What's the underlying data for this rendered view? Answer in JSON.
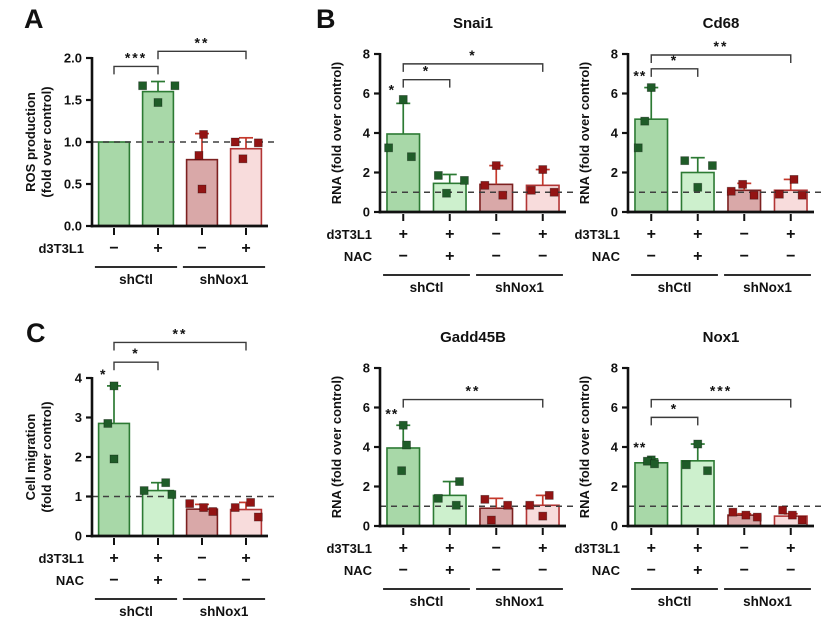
{
  "panels": {
    "a": "A",
    "b": "B",
    "c": "C"
  },
  "palette": {
    "green": {
      "fill": "#a8d8a8",
      "stroke": "#2c7a33",
      "err": "#2c7a33",
      "point": "#1f5c28"
    },
    "greenLight": {
      "fill": "#cdf0cd",
      "stroke": "#2c7a33",
      "err": "#2c7a33",
      "point": "#1f5c28"
    },
    "rose": {
      "fill": "#d9a8a8",
      "stroke": "#7c2020",
      "err": "#c4392c",
      "point": "#931414"
    },
    "pink": {
      "fill": "#f8dcdc",
      "stroke": "#b23535",
      "err": "#c4392c",
      "point": "#931414"
    }
  },
  "chart_data": [
    {
      "id": "A",
      "type": "bar",
      "title": "",
      "ylabel_lines": [
        "ROS production",
        "(fold over control)"
      ],
      "ylim": [
        0,
        2.0
      ],
      "yticks": [
        0,
        0.5,
        1.0,
        1.5,
        2.0
      ],
      "ytick_labels": [
        "0.0",
        "0.5",
        "1.0",
        "1.5",
        "2.0"
      ],
      "dashed_line_y": 1.0,
      "x_rows": [
        {
          "label": "d3T3L1",
          "values": [
            "−",
            "+",
            "−",
            "+"
          ]
        }
      ],
      "groups": [
        {
          "label": "shCtl",
          "from": 0,
          "to": 1
        },
        {
          "label": "shNox1",
          "from": 2,
          "to": 3
        }
      ],
      "bars": [
        {
          "value": 1.0,
          "style": "green",
          "error_top": null,
          "points": [],
          "star": null,
          "star_y": null
        },
        {
          "value": 1.6,
          "style": "green",
          "error_top": 1.72,
          "points": [
            [
              1.67,
              -0.5
            ],
            [
              1.67,
              0.55
            ],
            [
              1.47,
              0
            ]
          ],
          "star": null,
          "star_y": null
        },
        {
          "value": 0.79,
          "style": "rose",
          "error_top": 1.1,
          "points": [
            [
              1.09,
              0.05
            ],
            [
              0.84,
              -0.1
            ],
            [
              0.44,
              0
            ]
          ],
          "star": null,
          "star_y": null
        },
        {
          "value": 0.92,
          "style": "pink",
          "error_top": 1.05,
          "points": [
            [
              1.0,
              -0.35
            ],
            [
              0.99,
              0.4
            ],
            [
              0.8,
              -0.1
            ]
          ],
          "star": null,
          "star_y": null
        }
      ],
      "brackets": [
        {
          "from": 0,
          "to": 1,
          "y": 1.9,
          "label": "***"
        },
        {
          "from": 1,
          "to": 3,
          "y": 2.08,
          "label": "**"
        }
      ]
    },
    {
      "id": "Snai1",
      "type": "bar",
      "title": "Snai1",
      "ylabel_lines": [
        "RNA (fold over control)"
      ],
      "ylim": [
        0,
        8
      ],
      "yticks": [
        0,
        2,
        4,
        6,
        8
      ],
      "ytick_labels": [
        "0",
        "2",
        "4",
        "6",
        "8"
      ],
      "dashed_line_y": 1.0,
      "x_rows": [
        {
          "label": "d3T3L1",
          "values": [
            "+",
            "+",
            "−",
            "+"
          ]
        },
        {
          "label": "NAC",
          "values": [
            "−",
            "+",
            "−",
            "−"
          ]
        }
      ],
      "groups": [
        {
          "label": "shCtl",
          "from": 0,
          "to": 1
        },
        {
          "label": "shNox1",
          "from": 2,
          "to": 3
        }
      ],
      "bars": [
        {
          "value": 3.95,
          "style": "green",
          "error_top": 5.5,
          "points": [
            [
              5.7,
              0
            ],
            [
              3.25,
              -0.45
            ],
            [
              2.8,
              0.25
            ]
          ],
          "star": "*",
          "star_y": 5.95
        },
        {
          "value": 1.45,
          "style": "greenLight",
          "error_top": 1.9,
          "points": [
            [
              1.85,
              -0.35
            ],
            [
              1.6,
              0.45
            ],
            [
              0.95,
              -0.1
            ]
          ],
          "star": null,
          "star_y": null
        },
        {
          "value": 1.4,
          "style": "rose",
          "error_top": 2.35,
          "points": [
            [
              2.35,
              0
            ],
            [
              1.35,
              -0.35
            ],
            [
              0.85,
              0.2
            ]
          ],
          "star": null,
          "star_y": null
        },
        {
          "value": 1.35,
          "style": "pink",
          "error_top": 2.15,
          "points": [
            [
              2.15,
              0
            ],
            [
              1.1,
              -0.35
            ],
            [
              1.0,
              0.35
            ]
          ],
          "star": null,
          "star_y": null
        }
      ],
      "brackets": [
        {
          "from": 0,
          "to": 1,
          "y": 6.7,
          "label": "*"
        },
        {
          "from": 0,
          "to": 3,
          "y": 7.5,
          "label": "*"
        }
      ]
    },
    {
      "id": "Cd68",
      "type": "bar",
      "title": "Cd68",
      "ylabel_lines": [
        "RNA (fold over control)"
      ],
      "ylim": [
        0,
        8
      ],
      "yticks": [
        0,
        2,
        4,
        6,
        8
      ],
      "ytick_labels": [
        "0",
        "2",
        "4",
        "6",
        "8"
      ],
      "dashed_line_y": 1.0,
      "x_rows": [
        {
          "label": "d3T3L1",
          "values": [
            "+",
            "+",
            "−",
            "+"
          ]
        },
        {
          "label": "NAC",
          "values": [
            "−",
            "+",
            "−",
            "−"
          ]
        }
      ],
      "groups": [
        {
          "label": "shCtl",
          "from": 0,
          "to": 1
        },
        {
          "label": "shNox1",
          "from": 2,
          "to": 3
        }
      ],
      "bars": [
        {
          "value": 4.7,
          "style": "green",
          "error_top": 6.3,
          "points": [
            [
              6.3,
              0
            ],
            [
              4.6,
              -0.2
            ],
            [
              3.25,
              -0.4
            ]
          ],
          "star": "**",
          "star_y": 6.65
        },
        {
          "value": 2.0,
          "style": "greenLight",
          "error_top": 2.75,
          "points": [
            [
              2.6,
              -0.4
            ],
            [
              2.35,
              0.45
            ],
            [
              1.25,
              0
            ]
          ],
          "star": null,
          "star_y": null
        },
        {
          "value": 1.1,
          "style": "rose",
          "error_top": 1.45,
          "points": [
            [
              1.4,
              -0.05
            ],
            [
              1.05,
              -0.4
            ],
            [
              0.85,
              0.3
            ]
          ],
          "star": null,
          "star_y": null
        },
        {
          "value": 1.1,
          "style": "pink",
          "error_top": 1.65,
          "points": [
            [
              1.65,
              0.1
            ],
            [
              0.9,
              -0.35
            ],
            [
              0.85,
              0.35
            ]
          ],
          "star": null,
          "star_y": null
        }
      ],
      "brackets": [
        {
          "from": 0,
          "to": 1,
          "y": 7.25,
          "label": "*"
        },
        {
          "from": 0,
          "to": 3,
          "y": 7.95,
          "label": "**"
        }
      ]
    },
    {
      "id": "C",
      "type": "bar",
      "title": "",
      "ylabel_lines": [
        "Cell migration",
        "(fold over control)"
      ],
      "ylim": [
        0,
        4
      ],
      "yticks": [
        0,
        1,
        2,
        3,
        4
      ],
      "ytick_labels": [
        "0",
        "1",
        "2",
        "3",
        "4"
      ],
      "dashed_line_y": 1.0,
      "x_rows": [
        {
          "label": "d3T3L1",
          "values": [
            "+",
            "+",
            "−",
            "+"
          ]
        },
        {
          "label": "NAC",
          "values": [
            "−",
            "+",
            "−",
            "−"
          ]
        }
      ],
      "groups": [
        {
          "label": "shCtl",
          "from": 0,
          "to": 1
        },
        {
          "label": "shNox1",
          "from": 2,
          "to": 3
        }
      ],
      "bars": [
        {
          "value": 2.85,
          "style": "green",
          "error_top": 3.8,
          "points": [
            [
              3.8,
              0
            ],
            [
              2.85,
              -0.2
            ],
            [
              1.95,
              0
            ]
          ],
          "star": "*",
          "star_y": 3.98
        },
        {
          "value": 1.15,
          "style": "greenLight",
          "error_top": 1.35,
          "points": [
            [
              1.35,
              0.25
            ],
            [
              1.15,
              -0.45
            ],
            [
              1.05,
              0.45
            ]
          ],
          "star": null,
          "star_y": null
        },
        {
          "value": 0.68,
          "style": "rose",
          "error_top": 0.8,
          "points": [
            [
              0.82,
              -0.4
            ],
            [
              0.72,
              0.05
            ],
            [
              0.62,
              0.35
            ]
          ],
          "star": null,
          "star_y": null
        },
        {
          "value": 0.67,
          "style": "pink",
          "error_top": 0.85,
          "points": [
            [
              0.85,
              0.15
            ],
            [
              0.72,
              -0.35
            ],
            [
              0.48,
              0.4
            ]
          ],
          "star": null,
          "star_y": null
        }
      ],
      "brackets": [
        {
          "from": 0,
          "to": 1,
          "y": 4.4,
          "label": "*"
        },
        {
          "from": 0,
          "to": 3,
          "y": 4.9,
          "label": "**"
        }
      ]
    },
    {
      "id": "Gadd45B",
      "type": "bar",
      "title": "Gadd45B",
      "ylabel_lines": [
        "RNA (fold over control)"
      ],
      "ylim": [
        0,
        8
      ],
      "yticks": [
        0,
        2,
        4,
        6,
        8
      ],
      "ytick_labels": [
        "0",
        "2",
        "4",
        "6",
        "8"
      ],
      "dashed_line_y": 1.0,
      "x_rows": [
        {
          "label": "d3T3L1",
          "values": [
            "+",
            "+",
            "−",
            "+"
          ]
        },
        {
          "label": "NAC",
          "values": [
            "−",
            "+",
            "−",
            "−"
          ]
        }
      ],
      "groups": [
        {
          "label": "shCtl",
          "from": 0,
          "to": 1
        },
        {
          "label": "shNox1",
          "from": 2,
          "to": 3
        }
      ],
      "bars": [
        {
          "value": 3.95,
          "style": "green",
          "error_top": 5.1,
          "points": [
            [
              5.1,
              0
            ],
            [
              4.1,
              0.1
            ],
            [
              2.8,
              -0.05
            ]
          ],
          "star": "**",
          "star_y": 5.45
        },
        {
          "value": 1.55,
          "style": "greenLight",
          "error_top": 2.25,
          "points": [
            [
              2.25,
              0.3
            ],
            [
              1.4,
              -0.35
            ],
            [
              1.05,
              0.2
            ]
          ],
          "star": null,
          "star_y": null
        },
        {
          "value": 0.9,
          "style": "rose",
          "error_top": 1.4,
          "points": [
            [
              1.35,
              -0.35
            ],
            [
              1.05,
              0.35
            ],
            [
              0.3,
              -0.15
            ]
          ],
          "star": null,
          "star_y": null
        },
        {
          "value": 1.05,
          "style": "pink",
          "error_top": 1.55,
          "points": [
            [
              1.55,
              0.2
            ],
            [
              1.05,
              -0.4
            ],
            [
              0.5,
              0
            ]
          ],
          "star": null,
          "star_y": null
        }
      ],
      "brackets": [
        {
          "from": 0,
          "to": 3,
          "y": 6.4,
          "label": "**"
        }
      ]
    },
    {
      "id": "Nox1",
      "type": "bar",
      "title": "Nox1",
      "ylabel_lines": [
        "RNA (fold over control)"
      ],
      "ylim": [
        0,
        8
      ],
      "yticks": [
        0,
        2,
        4,
        6,
        8
      ],
      "ytick_labels": [
        "0",
        "2",
        "4",
        "6",
        "8"
      ],
      "dashed_line_y": 1.0,
      "x_rows": [
        {
          "label": "d3T3L1",
          "values": [
            "+",
            "+",
            "−",
            "+"
          ]
        },
        {
          "label": "NAC",
          "values": [
            "−",
            "+",
            "−",
            "−"
          ]
        }
      ],
      "groups": [
        {
          "label": "shCtl",
          "from": 0,
          "to": 1
        },
        {
          "label": "shNox1",
          "from": 2,
          "to": 3
        }
      ],
      "bars": [
        {
          "value": 3.2,
          "style": "green",
          "error_top": 3.4,
          "points": [
            [
              3.35,
              0
            ],
            [
              3.28,
              -0.12
            ],
            [
              3.15,
              0.1
            ]
          ],
          "star": "**",
          "star_y": 3.75
        },
        {
          "value": 3.3,
          "style": "greenLight",
          "error_top": 4.15,
          "points": [
            [
              4.15,
              0
            ],
            [
              3.1,
              -0.35
            ],
            [
              2.8,
              0.3
            ]
          ],
          "star": null,
          "star_y": null
        },
        {
          "value": 0.55,
          "style": "rose",
          "error_top": 0.62,
          "points": [
            [
              0.7,
              -0.35
            ],
            [
              0.55,
              0.05
            ],
            [
              0.45,
              0.4
            ]
          ],
          "star": null,
          "star_y": null
        },
        {
          "value": 0.5,
          "style": "pink",
          "error_top": 0.62,
          "points": [
            [
              0.8,
              -0.25
            ],
            [
              0.55,
              0.05
            ],
            [
              0.3,
              0.35
            ]
          ],
          "star": null,
          "star_y": null
        }
      ],
      "brackets": [
        {
          "from": 0,
          "to": 1,
          "y": 5.5,
          "label": "*"
        },
        {
          "from": 0,
          "to": 3,
          "y": 6.4,
          "label": "***"
        }
      ]
    }
  ]
}
